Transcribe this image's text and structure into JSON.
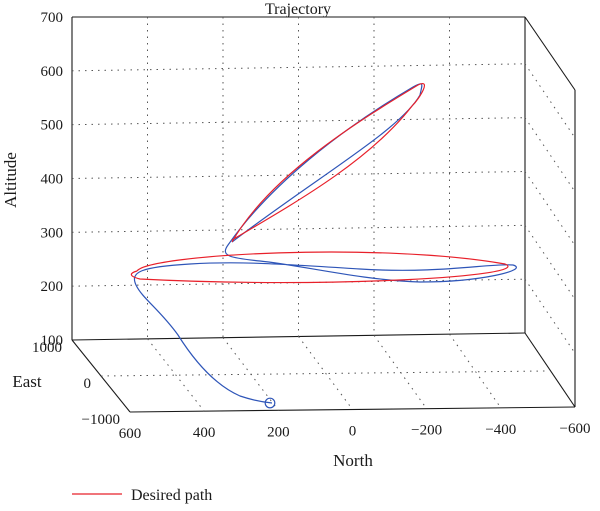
{
  "chart_data": {
    "type": "line3d",
    "title": "Trajectory",
    "xlabel": "North",
    "ylabel": "East",
    "zlabel": "Altitude",
    "z_ticks": [
      "100",
      "200",
      "300",
      "400",
      "500",
      "600",
      "700"
    ],
    "north_ticks": [
      "600",
      "400",
      "200",
      "0",
      "−200",
      "−400",
      "−600"
    ],
    "east_ticks": [
      "1000",
      "0",
      "−1000"
    ],
    "grid": true,
    "legend_position": "bottom-left",
    "series": [
      {
        "name": "Desired path",
        "color": "#e8202a"
      },
      {
        "name": "",
        "color": "#2e55b8"
      }
    ]
  }
}
